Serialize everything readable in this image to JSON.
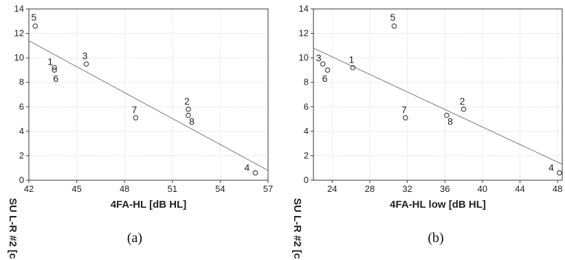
{
  "chart_data": [
    {
      "type": "scatter",
      "caption": "(a)",
      "xlabel": "4FA-HL [dB HL]",
      "ylabel": "SU L-R #2 [c",
      "xlim": [
        42,
        57
      ],
      "ylim": [
        0,
        14
      ],
      "xticks": [
        42,
        45,
        48,
        51,
        54,
        57
      ],
      "yticks": [
        0,
        2,
        4,
        6,
        8,
        10,
        12,
        14
      ],
      "grid": true,
      "points": [
        {
          "label": "1",
          "x": 43.6,
          "y": 9.2
        },
        {
          "label": "2",
          "x": 52.0,
          "y": 5.8
        },
        {
          "label": "3",
          "x": 45.6,
          "y": 9.5
        },
        {
          "label": "4",
          "x": 56.2,
          "y": 0.6
        },
        {
          "label": "5",
          "x": 42.4,
          "y": 12.6
        },
        {
          "label": "6",
          "x": 43.6,
          "y": 9.0
        },
        {
          "label": "7",
          "x": 48.7,
          "y": 5.1
        },
        {
          "label": "8",
          "x": 52.0,
          "y": 5.3
        }
      ],
      "fit_line": [
        [
          42,
          11.4
        ],
        [
          57,
          0.8
        ]
      ]
    },
    {
      "type": "scatter",
      "caption": "(b)",
      "xlabel": "4FA-HL low [dB HL]",
      "ylabel": "SU L-R #2 [c",
      "xlim": [
        22,
        48.5
      ],
      "ylim": [
        0,
        14
      ],
      "xticks": [
        24,
        28,
        32,
        36,
        40,
        44,
        48
      ],
      "yticks": [
        0,
        2,
        4,
        6,
        8,
        10,
        12,
        14
      ],
      "grid": true,
      "points": [
        {
          "label": "1",
          "x": 26.2,
          "y": 9.2
        },
        {
          "label": "2",
          "x": 38.0,
          "y": 5.8
        },
        {
          "label": "3",
          "x": 23.0,
          "y": 9.5
        },
        {
          "label": "4",
          "x": 48.2,
          "y": 0.6
        },
        {
          "label": "5",
          "x": 30.6,
          "y": 12.6
        },
        {
          "label": "6",
          "x": 23.5,
          "y": 9.0
        },
        {
          "label": "7",
          "x": 31.8,
          "y": 5.1
        },
        {
          "label": "8",
          "x": 36.2,
          "y": 5.3
        }
      ],
      "fit_line": [
        [
          22,
          10.8
        ],
        [
          48.5,
          1.3
        ]
      ]
    }
  ]
}
